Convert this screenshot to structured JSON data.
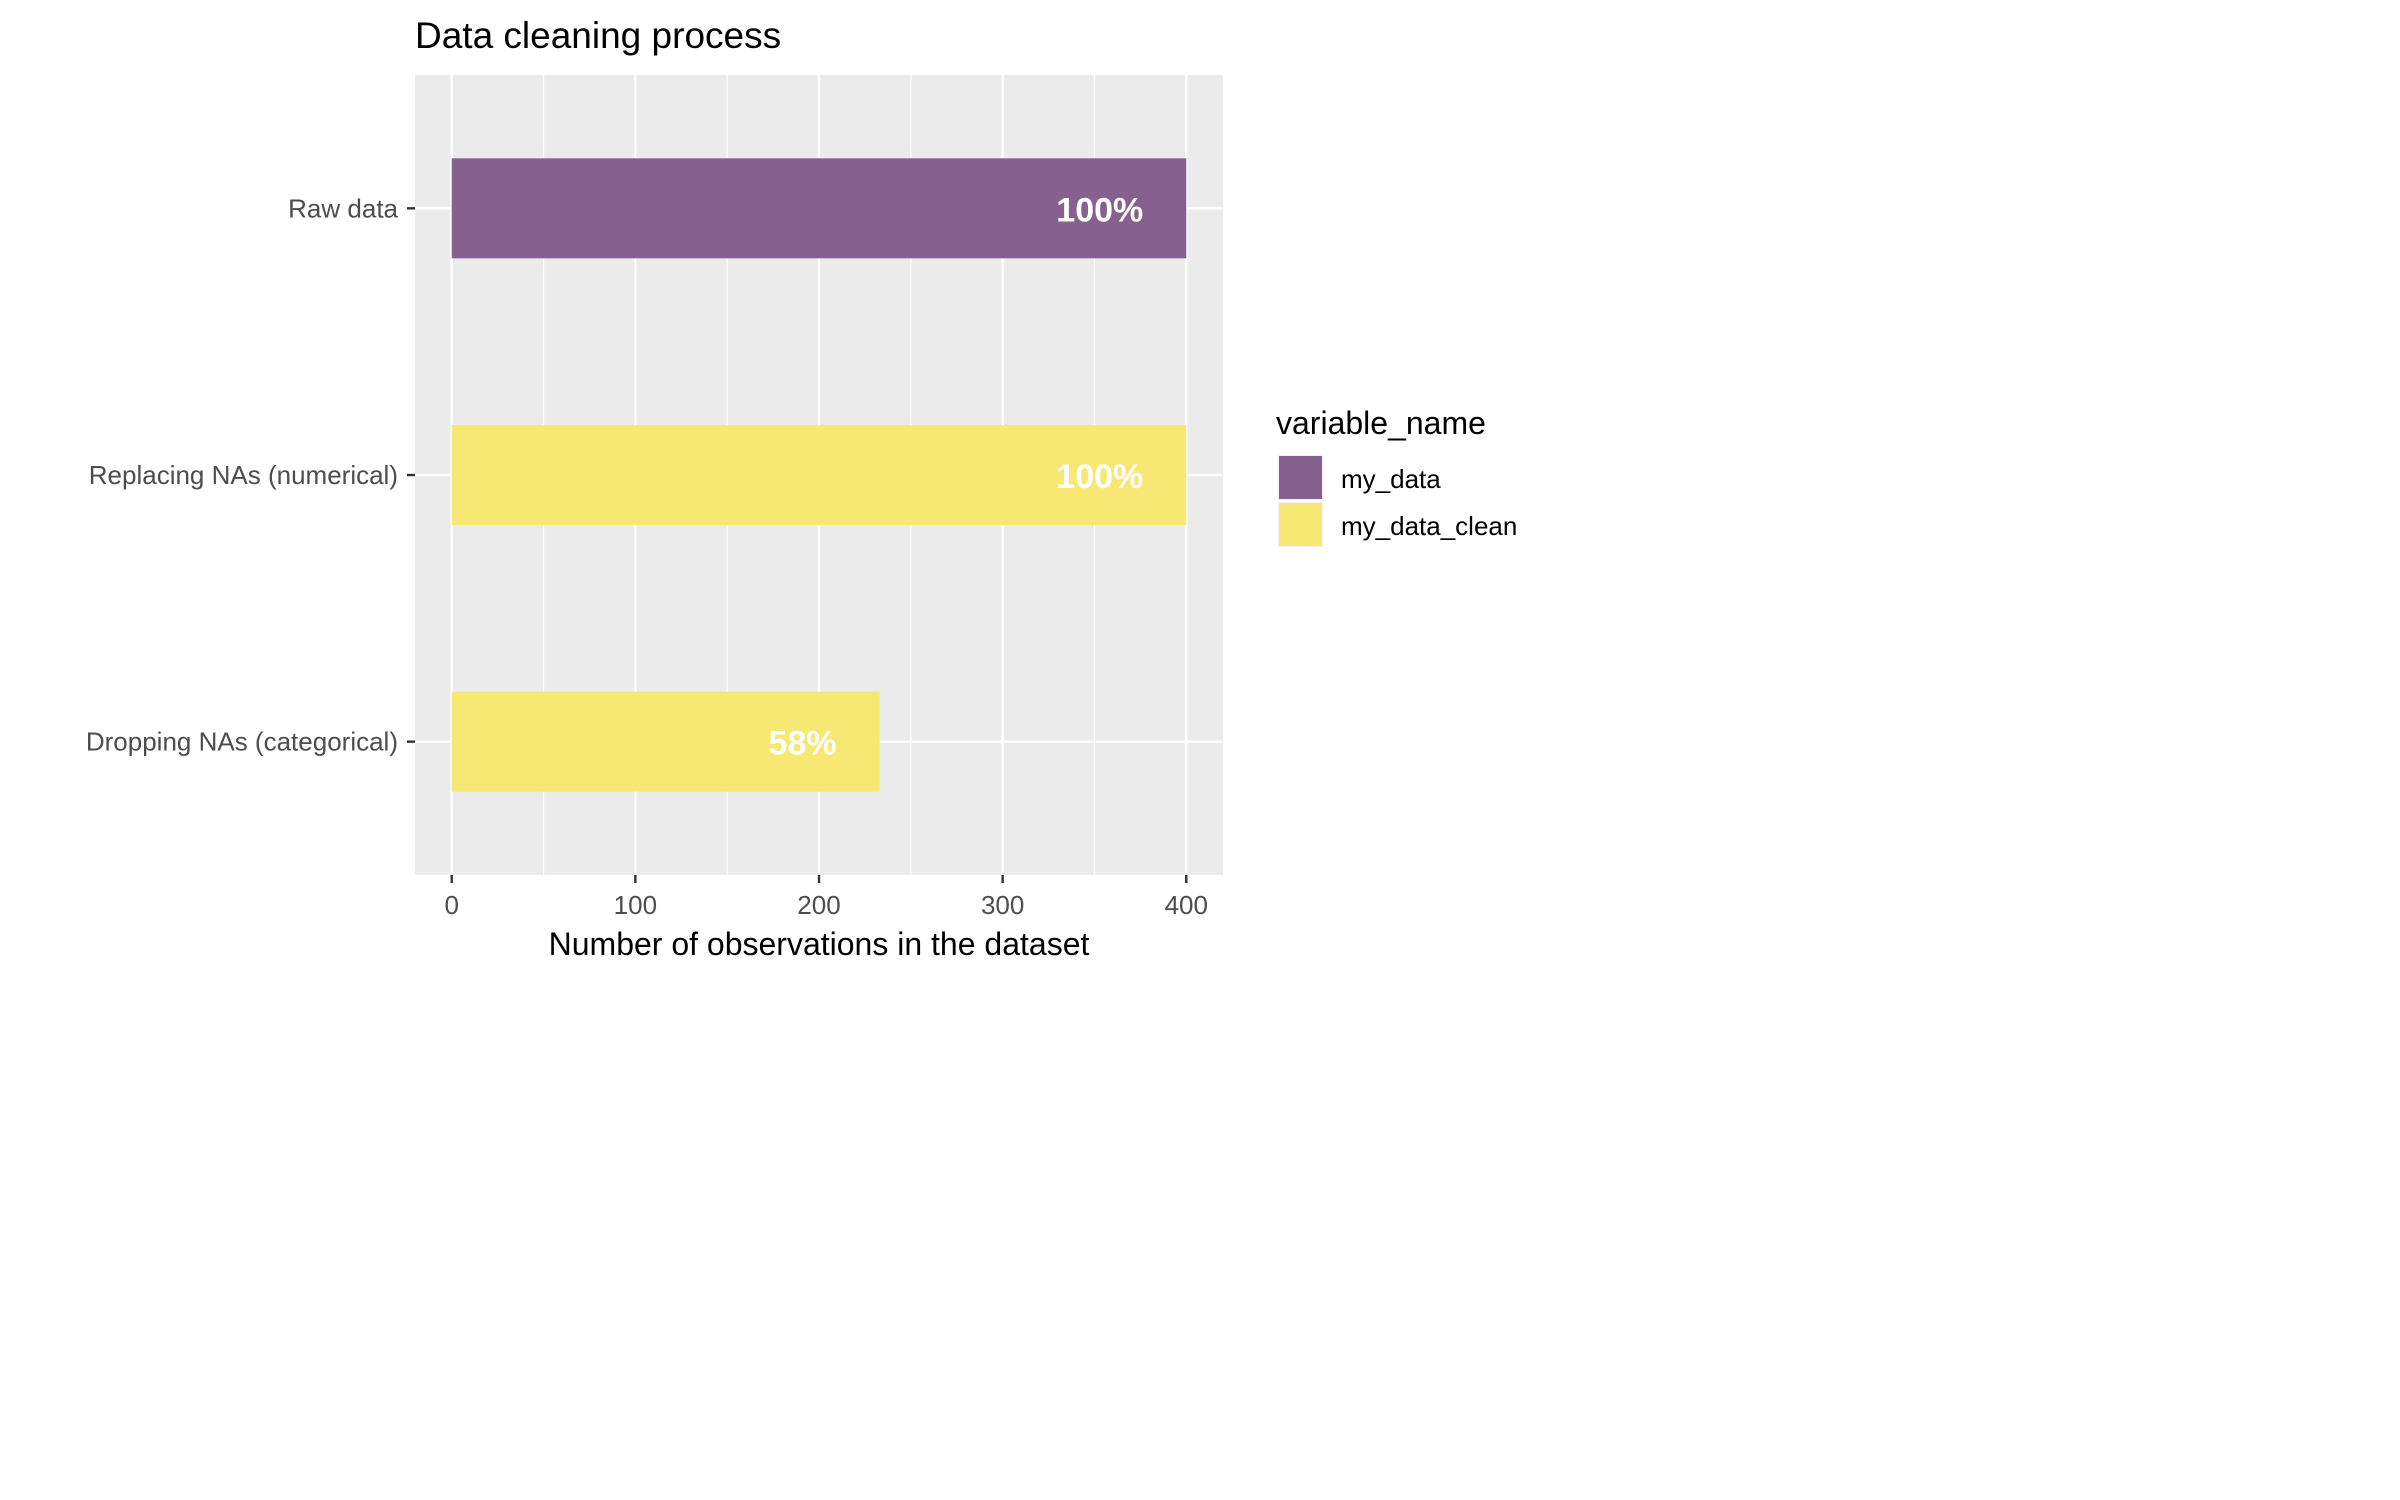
{
  "chart_data": {
    "type": "bar",
    "orientation": "horizontal",
    "title": "Data cleaning process",
    "xlabel": "Number of observations in the dataset",
    "ylabel": "",
    "xlim": [
      -20,
      420
    ],
    "x_ticks": [
      0,
      100,
      200,
      300,
      400
    ],
    "categories": [
      "Raw data",
      "Replacing NAs (numerical)",
      "Dropping NAs (categorical)"
    ],
    "values": [
      400,
      400,
      233
    ],
    "bar_series": [
      "my_data",
      "my_data_clean",
      "my_data_clean"
    ],
    "data_labels": [
      "100%",
      "100%",
      "58%"
    ],
    "legend": {
      "title": "variable_name",
      "position": "right",
      "entries": [
        {
          "name": "my_data",
          "color": "#86608E"
        },
        {
          "name": "my_data_clean",
          "color": "#F7E873"
        }
      ]
    },
    "grid": true,
    "colors": {
      "panel_bg": "#EBEBEB",
      "grid": "#FFFFFF",
      "data_label": "#FFFFFF"
    }
  }
}
